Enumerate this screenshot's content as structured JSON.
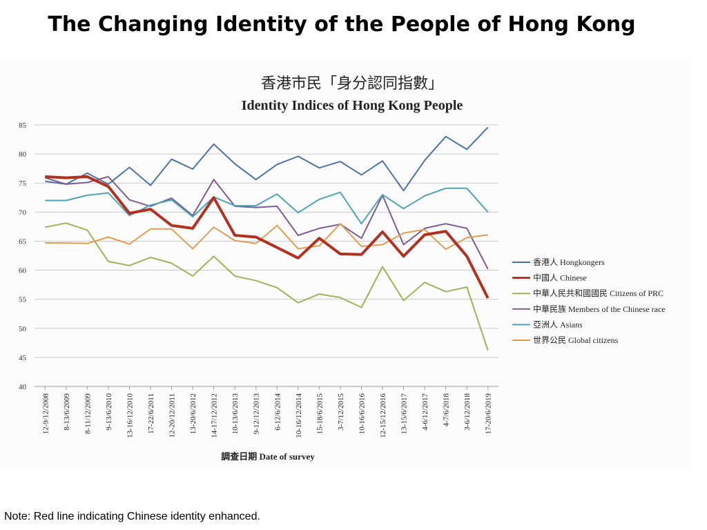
{
  "page": {
    "title": "The Changing Identity of the People of Hong Kong",
    "note": "Note: Red line indicating Chinese identity enhanced."
  },
  "chart_data": {
    "type": "line",
    "title_zh": "香港市民「身分認同指數」",
    "title": "Identity Indices of Hong Kong People",
    "xlabel": "調查日期 Date of survey",
    "ylabel": "",
    "ylim": [
      40,
      85
    ],
    "yticks": [
      40,
      45,
      50,
      55,
      60,
      65,
      70,
      75,
      80,
      85
    ],
    "grid": true,
    "legend_position": "right",
    "categories": [
      "12-9/12/2008",
      "8-13/6/2009",
      "8-11/12/2009",
      "9-13/6/2010",
      "13-16/12/2010",
      "17-22/6/2011",
      "12-20/12/2011",
      "13-20/6/2012",
      "14-17/12/2012",
      "10-13/6/2013",
      "9-12/12/2013",
      "6-12/6/2014",
      "10-16/12/2014",
      "15-18/6/2015",
      "3-7/12/2015",
      "10-16/6/2016",
      "12-15/12/2016",
      "13-15/6/2017",
      "4-6/12/2017",
      "4-7/6/2018",
      "3-6/12/2018",
      "17-20/6/2019"
    ],
    "series": [
      {
        "name": "香港人 Hongkongers",
        "color": "#4a72aa",
        "width": 2,
        "values": [
          75.3,
          74.8,
          76.7,
          74.8,
          77.7,
          74.6,
          79.1,
          77.4,
          81.7,
          78.3,
          75.6,
          78.2,
          79.6,
          77.6,
          78.7,
          76.4,
          78.8,
          73.7,
          78.9,
          83.0,
          80.8,
          84.6
        ]
      },
      {
        "name": "中國人 Chinese",
        "color": "#b3301f",
        "width": 4,
        "values": [
          76.1,
          75.9,
          76.1,
          74.4,
          69.8,
          70.5,
          67.7,
          67.2,
          72.5,
          66.0,
          65.7,
          63.9,
          62.1,
          65.5,
          62.8,
          62.7,
          66.6,
          62.4,
          66.1,
          66.7,
          62.4,
          55.2
        ]
      },
      {
        "name": "中華人民共和國國民 Citizens of PRC",
        "color": "#98b656",
        "width": 2,
        "values": [
          67.4,
          68.1,
          66.9,
          61.5,
          60.8,
          62.2,
          61.2,
          59.0,
          62.4,
          59.0,
          58.2,
          57.0,
          54.4,
          55.9,
          55.3,
          53.6,
          60.6,
          54.8,
          57.9,
          56.3,
          57.1,
          46.2
        ]
      },
      {
        "name": "中華民族 Members of the Chinese race",
        "color": "#7d5a95",
        "width": 2,
        "values": [
          75.9,
          74.8,
          75.1,
          76.1,
          72.1,
          71.0,
          72.4,
          69.4,
          75.6,
          71.0,
          70.8,
          71.0,
          66.0,
          67.2,
          67.9,
          65.5,
          72.9,
          64.4,
          67.2,
          68.0,
          67.2,
          60.2
        ]
      },
      {
        "name": "亞洲人 Asians",
        "color": "#4aa3b9",
        "width": 2,
        "values": [
          72.0,
          72.0,
          72.9,
          73.3,
          69.4,
          71.2,
          72.1,
          69.2,
          72.6,
          71.1,
          71.1,
          73.1,
          69.9,
          72.2,
          73.4,
          68.0,
          73.0,
          70.6,
          72.8,
          74.1,
          74.1,
          70.0
        ]
      },
      {
        "name": "世界公民 Global citizens",
        "color": "#e29b4f",
        "width": 2,
        "values": [
          64.7,
          64.7,
          64.6,
          65.7,
          64.5,
          67.1,
          67.1,
          63.7,
          67.4,
          65.1,
          64.6,
          67.7,
          63.7,
          64.2,
          68.0,
          64.1,
          64.4,
          66.4,
          67.0,
          63.6,
          65.6,
          66.1
        ]
      }
    ]
  }
}
